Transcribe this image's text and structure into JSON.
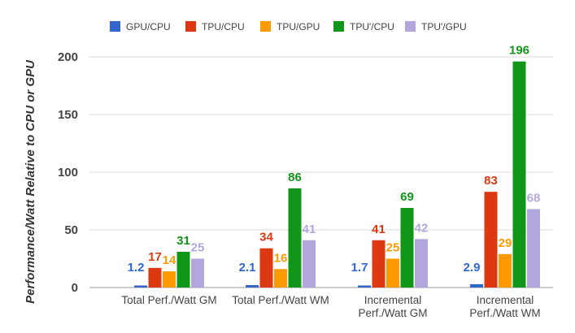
{
  "chart_data": {
    "type": "bar",
    "ylabel": "Performance/Watt Relative to CPU or GPU",
    "xlabel": "",
    "ylim": [
      0,
      200
    ],
    "yticks": [
      0,
      50,
      100,
      150,
      200
    ],
    "grid": true,
    "legend_position": "top",
    "categories": [
      [
        "Total Perf./Watt GM"
      ],
      [
        "Total Perf./Watt WM"
      ],
      [
        "Incremental",
        "Perf./Watt GM"
      ],
      [
        "Incremental",
        "Perf./Watt WM"
      ]
    ],
    "series": [
      {
        "name": "GPU/CPU",
        "color": "#3366cc",
        "values": [
          1.2,
          2.1,
          1.7,
          2.9
        ],
        "labels": [
          "1.2",
          "2.1",
          "1.7",
          "2.9"
        ]
      },
      {
        "name": "TPU/CPU",
        "color": "#dc3912",
        "values": [
          17,
          34,
          41,
          83
        ],
        "labels": [
          "17",
          "34",
          "41",
          "83"
        ]
      },
      {
        "name": "TPU/GPU",
        "color": "#ff9900",
        "values": [
          14,
          16,
          25,
          29
        ],
        "labels": [
          "14",
          "16",
          "25",
          "29"
        ]
      },
      {
        "name": "TPU'/CPU",
        "color": "#109618",
        "values": [
          31,
          86,
          69,
          196
        ],
        "labels": [
          "31",
          "86",
          "69",
          "196"
        ]
      },
      {
        "name": "TPU'/GPU",
        "color": "#b3a6dd",
        "values": [
          25,
          41,
          42,
          68
        ],
        "labels": [
          "25",
          "41",
          "42",
          "68"
        ]
      }
    ]
  }
}
